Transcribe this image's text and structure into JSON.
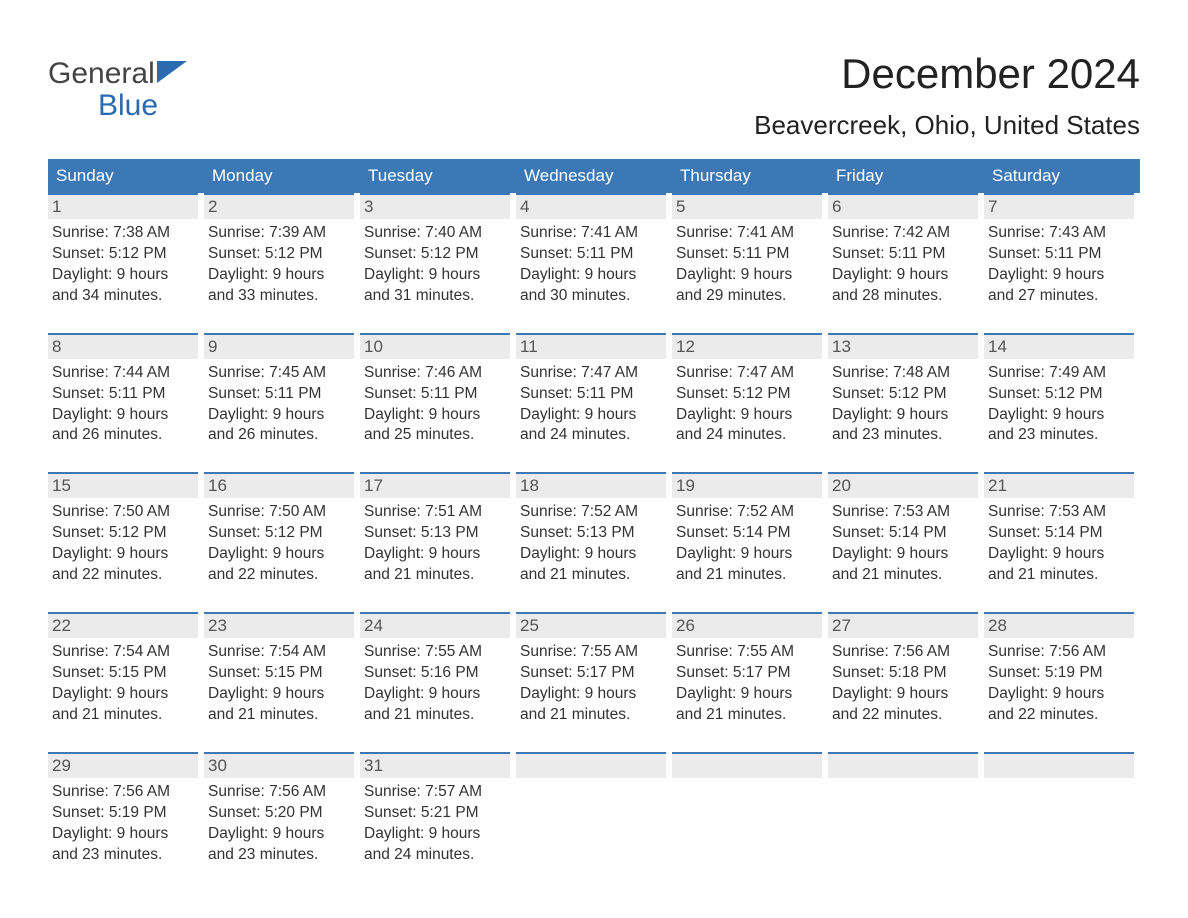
{
  "logo": {
    "top": "General",
    "bottom": "Blue",
    "flag_color": "#2a6bb0"
  },
  "title": "December 2024",
  "location": "Beavercreek, Ohio, United States",
  "colors": {
    "header_bg": "#3b78b5",
    "header_text": "#ffffff",
    "day_border_top": "#3b78b5",
    "daynum_bg": "#ebebeb",
    "text": "#333333",
    "background": "#ffffff"
  },
  "days_of_week": [
    "Sunday",
    "Monday",
    "Tuesday",
    "Wednesday",
    "Thursday",
    "Friday",
    "Saturday"
  ],
  "weeks": [
    [
      {
        "n": "1",
        "sunrise": "7:38 AM",
        "sunset": "5:12 PM",
        "dl1": "Daylight: 9 hours",
        "dl2": "and 34 minutes."
      },
      {
        "n": "2",
        "sunrise": "7:39 AM",
        "sunset": "5:12 PM",
        "dl1": "Daylight: 9 hours",
        "dl2": "and 33 minutes."
      },
      {
        "n": "3",
        "sunrise": "7:40 AM",
        "sunset": "5:12 PM",
        "dl1": "Daylight: 9 hours",
        "dl2": "and 31 minutes."
      },
      {
        "n": "4",
        "sunrise": "7:41 AM",
        "sunset": "5:11 PM",
        "dl1": "Daylight: 9 hours",
        "dl2": "and 30 minutes."
      },
      {
        "n": "5",
        "sunrise": "7:41 AM",
        "sunset": "5:11 PM",
        "dl1": "Daylight: 9 hours",
        "dl2": "and 29 minutes."
      },
      {
        "n": "6",
        "sunrise": "7:42 AM",
        "sunset": "5:11 PM",
        "dl1": "Daylight: 9 hours",
        "dl2": "and 28 minutes."
      },
      {
        "n": "7",
        "sunrise": "7:43 AM",
        "sunset": "5:11 PM",
        "dl1": "Daylight: 9 hours",
        "dl2": "and 27 minutes."
      }
    ],
    [
      {
        "n": "8",
        "sunrise": "7:44 AM",
        "sunset": "5:11 PM",
        "dl1": "Daylight: 9 hours",
        "dl2": "and 26 minutes."
      },
      {
        "n": "9",
        "sunrise": "7:45 AM",
        "sunset": "5:11 PM",
        "dl1": "Daylight: 9 hours",
        "dl2": "and 26 minutes."
      },
      {
        "n": "10",
        "sunrise": "7:46 AM",
        "sunset": "5:11 PM",
        "dl1": "Daylight: 9 hours",
        "dl2": "and 25 minutes."
      },
      {
        "n": "11",
        "sunrise": "7:47 AM",
        "sunset": "5:11 PM",
        "dl1": "Daylight: 9 hours",
        "dl2": "and 24 minutes."
      },
      {
        "n": "12",
        "sunrise": "7:47 AM",
        "sunset": "5:12 PM",
        "dl1": "Daylight: 9 hours",
        "dl2": "and 24 minutes."
      },
      {
        "n": "13",
        "sunrise": "7:48 AM",
        "sunset": "5:12 PM",
        "dl1": "Daylight: 9 hours",
        "dl2": "and 23 minutes."
      },
      {
        "n": "14",
        "sunrise": "7:49 AM",
        "sunset": "5:12 PM",
        "dl1": "Daylight: 9 hours",
        "dl2": "and 23 minutes."
      }
    ],
    [
      {
        "n": "15",
        "sunrise": "7:50 AM",
        "sunset": "5:12 PM",
        "dl1": "Daylight: 9 hours",
        "dl2": "and 22 minutes."
      },
      {
        "n": "16",
        "sunrise": "7:50 AM",
        "sunset": "5:12 PM",
        "dl1": "Daylight: 9 hours",
        "dl2": "and 22 minutes."
      },
      {
        "n": "17",
        "sunrise": "7:51 AM",
        "sunset": "5:13 PM",
        "dl1": "Daylight: 9 hours",
        "dl2": "and 21 minutes."
      },
      {
        "n": "18",
        "sunrise": "7:52 AM",
        "sunset": "5:13 PM",
        "dl1": "Daylight: 9 hours",
        "dl2": "and 21 minutes."
      },
      {
        "n": "19",
        "sunrise": "7:52 AM",
        "sunset": "5:14 PM",
        "dl1": "Daylight: 9 hours",
        "dl2": "and 21 minutes."
      },
      {
        "n": "20",
        "sunrise": "7:53 AM",
        "sunset": "5:14 PM",
        "dl1": "Daylight: 9 hours",
        "dl2": "and 21 minutes."
      },
      {
        "n": "21",
        "sunrise": "7:53 AM",
        "sunset": "5:14 PM",
        "dl1": "Daylight: 9 hours",
        "dl2": "and 21 minutes."
      }
    ],
    [
      {
        "n": "22",
        "sunrise": "7:54 AM",
        "sunset": "5:15 PM",
        "dl1": "Daylight: 9 hours",
        "dl2": "and 21 minutes."
      },
      {
        "n": "23",
        "sunrise": "7:54 AM",
        "sunset": "5:15 PM",
        "dl1": "Daylight: 9 hours",
        "dl2": "and 21 minutes."
      },
      {
        "n": "24",
        "sunrise": "7:55 AM",
        "sunset": "5:16 PM",
        "dl1": "Daylight: 9 hours",
        "dl2": "and 21 minutes."
      },
      {
        "n": "25",
        "sunrise": "7:55 AM",
        "sunset": "5:17 PM",
        "dl1": "Daylight: 9 hours",
        "dl2": "and 21 minutes."
      },
      {
        "n": "26",
        "sunrise": "7:55 AM",
        "sunset": "5:17 PM",
        "dl1": "Daylight: 9 hours",
        "dl2": "and 21 minutes."
      },
      {
        "n": "27",
        "sunrise": "7:56 AM",
        "sunset": "5:18 PM",
        "dl1": "Daylight: 9 hours",
        "dl2": "and 22 minutes."
      },
      {
        "n": "28",
        "sunrise": "7:56 AM",
        "sunset": "5:19 PM",
        "dl1": "Daylight: 9 hours",
        "dl2": "and 22 minutes."
      }
    ],
    [
      {
        "n": "29",
        "sunrise": "7:56 AM",
        "sunset": "5:19 PM",
        "dl1": "Daylight: 9 hours",
        "dl2": "and 23 minutes."
      },
      {
        "n": "30",
        "sunrise": "7:56 AM",
        "sunset": "5:20 PM",
        "dl1": "Daylight: 9 hours",
        "dl2": "and 23 minutes."
      },
      {
        "n": "31",
        "sunrise": "7:57 AM",
        "sunset": "5:21 PM",
        "dl1": "Daylight: 9 hours",
        "dl2": "and 24 minutes."
      },
      {
        "empty": true
      },
      {
        "empty": true
      },
      {
        "empty": true
      },
      {
        "empty": true
      }
    ]
  ],
  "labels": {
    "sunrise_prefix": "Sunrise: ",
    "sunset_prefix": "Sunset: "
  }
}
